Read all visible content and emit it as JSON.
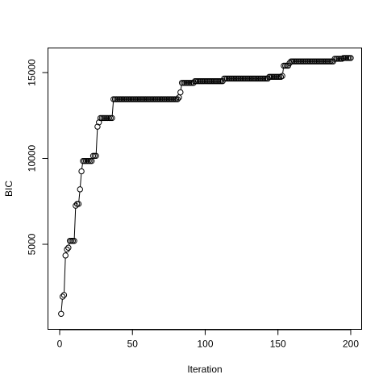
{
  "chart_data": {
    "type": "line",
    "title": "",
    "xlabel": "Iteration",
    "ylabel": "BIC",
    "xlim": [
      0,
      200
    ],
    "ylim": [
      900,
      15900
    ],
    "x_ticks": [
      0,
      50,
      100,
      150,
      200
    ],
    "y_ticks": [
      5000,
      10000,
      15000
    ],
    "x_tick_labels": [
      "0",
      "50",
      "100",
      "150",
      "200"
    ],
    "y_tick_labels": [
      "5000",
      "10000",
      "15000"
    ],
    "grid": false,
    "legend": "none",
    "marker": "open-circle",
    "line_color": "#000000",
    "steps": [
      [
        1,
        1,
        950
      ],
      [
        2,
        2,
        1950
      ],
      [
        3,
        3,
        2050
      ],
      [
        4,
        4,
        4350
      ],
      [
        5,
        5,
        4700
      ],
      [
        6,
        6,
        4800
      ],
      [
        7,
        10,
        5200
      ],
      [
        11,
        11,
        7250
      ],
      [
        12,
        13,
        7350
      ],
      [
        14,
        14,
        8200
      ],
      [
        15,
        15,
        9250
      ],
      [
        16,
        22,
        9850
      ],
      [
        23,
        25,
        10150
      ],
      [
        26,
        26,
        11850
      ],
      [
        27,
        27,
        12100
      ],
      [
        28,
        36,
        12350
      ],
      [
        37,
        81,
        13450
      ],
      [
        82,
        82,
        13550
      ],
      [
        83,
        83,
        13850
      ],
      [
        84,
        92,
        14400
      ],
      [
        93,
        112,
        14500
      ],
      [
        113,
        143,
        14650
      ],
      [
        144,
        152,
        14750
      ],
      [
        153,
        153,
        14800
      ],
      [
        154,
        157,
        15400
      ],
      [
        158,
        158,
        15550
      ],
      [
        159,
        188,
        15650
      ],
      [
        189,
        194,
        15800
      ],
      [
        195,
        200,
        15850
      ]
    ]
  }
}
